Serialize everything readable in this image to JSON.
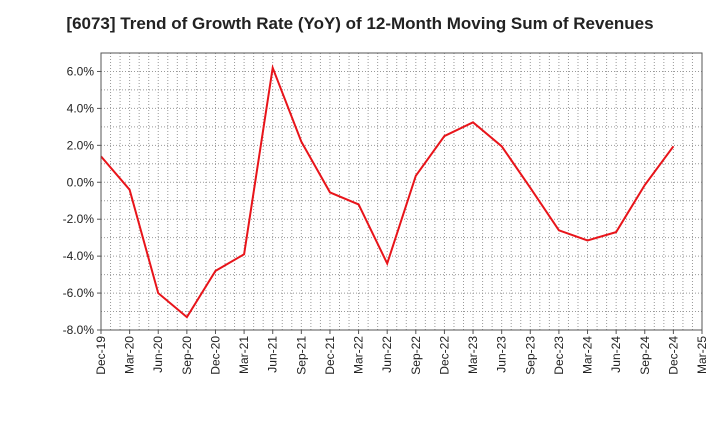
{
  "chart_data": {
    "type": "line",
    "title": "[6073]  Trend of Growth Rate (YoY) of 12-Month Moving Sum of Revenues",
    "xlabel": "",
    "ylabel": "",
    "categories": [
      "Dec-19",
      "Mar-20",
      "Jun-20",
      "Sep-20",
      "Dec-20",
      "Mar-21",
      "Jun-21",
      "Sep-21",
      "Dec-21",
      "Mar-22",
      "Jun-22",
      "Sep-22",
      "Dec-22",
      "Mar-23",
      "Jun-23",
      "Sep-23",
      "Dec-23",
      "Mar-24",
      "Jun-24",
      "Sep-24",
      "Dec-24",
      "Mar-25"
    ],
    "series": [
      {
        "color": "#e8141a",
        "values": [
          1.4,
          -0.4,
          -6.0,
          -7.3,
          -4.8,
          -3.9,
          6.2,
          2.2,
          -0.55,
          -1.2,
          -4.4,
          0.35,
          2.5,
          3.25,
          1.95,
          -0.3,
          -2.6,
          -3.15,
          -2.7,
          -0.15,
          1.95,
          null
        ]
      }
    ],
    "ylim": [
      -8.0,
      7.0
    ],
    "yticks": [
      6.0,
      4.0,
      2.0,
      0.0,
      -2.0,
      -4.0,
      -6.0,
      -8.0
    ],
    "ytick_labels": [
      "6.0%",
      "4.0%",
      "2.0%",
      "0.0%",
      "-2.0%",
      "-4.0%",
      "-6.0%",
      "-8.0%"
    ],
    "grid": true,
    "legend": "none"
  }
}
